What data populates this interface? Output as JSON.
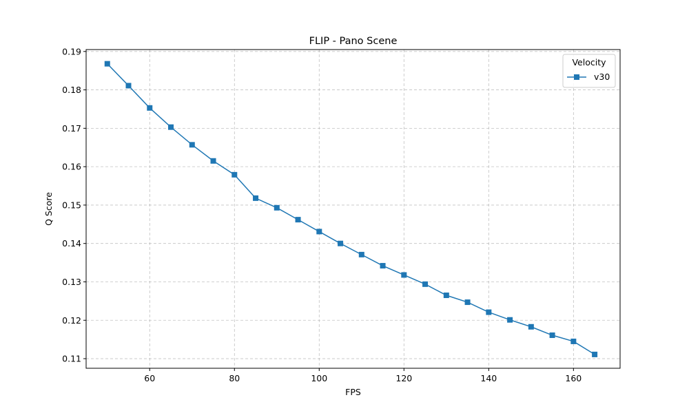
{
  "chart_data": {
    "type": "line",
    "title": "FLIP - Pano Scene",
    "xlabel": "FPS",
    "ylabel": "Q Score",
    "xlim": [
      45,
      171
    ],
    "ylim": [
      0.1075,
      0.1905
    ],
    "xticks": [
      60,
      80,
      100,
      120,
      140,
      160
    ],
    "yticks": [
      0.11,
      0.12,
      0.13,
      0.14,
      0.15,
      0.16,
      0.17,
      0.18,
      0.19
    ],
    "grid": true,
    "legend": {
      "title": "Velocity",
      "placement": "top-right"
    },
    "series": [
      {
        "name": "v30",
        "color": "#1f77b4",
        "marker": "square",
        "x": [
          50,
          55,
          60,
          65,
          70,
          75,
          80,
          85,
          90,
          95,
          100,
          105,
          110,
          115,
          120,
          125,
          130,
          135,
          140,
          145,
          150,
          155,
          160,
          165
        ],
        "y": [
          0.1868,
          0.1811,
          0.1753,
          0.1703,
          0.1657,
          0.1615,
          0.1579,
          0.1518,
          0.1493,
          0.1462,
          0.1431,
          0.14,
          0.1371,
          0.1342,
          0.1318,
          0.1294,
          0.1265,
          0.1247,
          0.1221,
          0.1201,
          0.1183,
          0.1161,
          0.1145,
          0.1111
        ]
      }
    ]
  }
}
